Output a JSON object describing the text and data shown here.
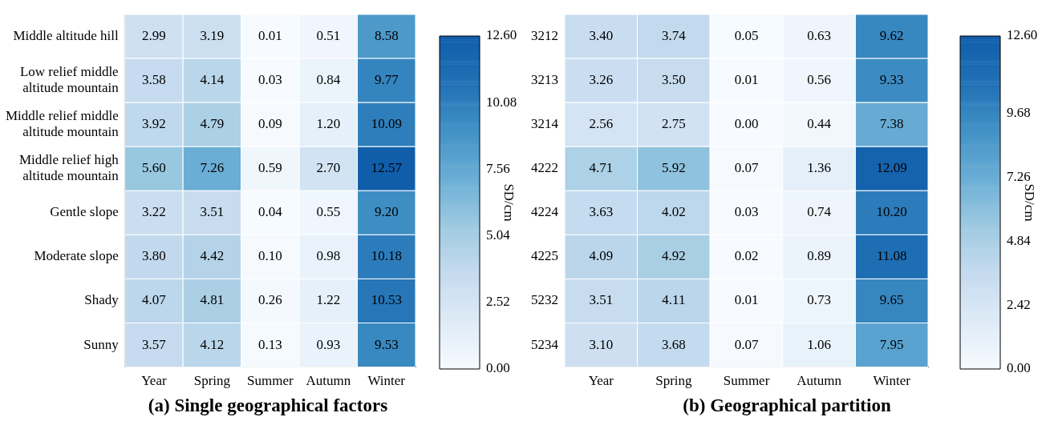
{
  "chart_data": [
    {
      "type": "heatmap",
      "title": "(a) Single geographical factors",
      "clabel": "SD/cm",
      "categories": [
        "Year",
        "Spring",
        "Summer",
        "Autumn",
        "Winter"
      ],
      "y_categories": [
        "Middle altitude hill",
        "Low relief middle altitude mountain",
        "Middle relief middle altitude mountain",
        "Middle relief high altitude mountain",
        "Gentle slope",
        "Moderate slope",
        "Shady",
        "Sunny"
      ],
      "cells": [
        [
          2.99,
          3.19,
          0.01,
          0.51,
          8.58
        ],
        [
          3.58,
          4.14,
          0.03,
          0.84,
          9.77
        ],
        [
          3.92,
          4.79,
          0.09,
          1.2,
          10.09
        ],
        [
          5.6,
          7.26,
          0.59,
          2.7,
          12.57
        ],
        [
          3.22,
          3.51,
          0.04,
          0.55,
          9.2
        ],
        [
          3.8,
          4.42,
          0.1,
          0.98,
          10.18
        ],
        [
          4.07,
          4.81,
          0.26,
          1.22,
          10.53
        ],
        [
          3.57,
          4.12,
          0.13,
          0.93,
          9.53
        ]
      ],
      "cell_labels": [
        [
          "2.99",
          "3.19",
          "0.01",
          "0.51",
          "8.58"
        ],
        [
          "3.58",
          "4.14",
          "0.03",
          "0.84",
          "9.77"
        ],
        [
          "3.92",
          "4.79",
          "0.09",
          "1.20",
          "10.09"
        ],
        [
          "5.60",
          "7.26",
          "0.59",
          "2.70",
          "12.57"
        ],
        [
          "3.22",
          "3.51",
          "0.04",
          "0.55",
          "9.20"
        ],
        [
          "3.80",
          "4.42",
          "0.10",
          "0.98",
          "10.18"
        ],
        [
          "4.07",
          "4.81",
          "0.26",
          "1.22",
          "10.53"
        ],
        [
          "3.57",
          "4.12",
          "0.13",
          "0.93",
          "9.53"
        ]
      ],
      "clim": [
        0,
        12.6
      ],
      "cticks": [
        {
          "value": 0,
          "label": "0.00"
        },
        {
          "value": 2.52,
          "label": "2.52"
        },
        {
          "value": 5.04,
          "label": "5.04"
        },
        {
          "value": 7.56,
          "label": "7.56"
        },
        {
          "value": 10.08,
          "label": "10.08"
        },
        {
          "value": 12.6,
          "label": "12.60"
        }
      ]
    },
    {
      "type": "heatmap",
      "title": "(b) Geographical partition",
      "clabel": "SD/cm",
      "categories": [
        "Year",
        "Spring",
        "Summer",
        "Autumn",
        "Winter"
      ],
      "y_categories": [
        "3212",
        "3213",
        "3214",
        "4222",
        "4224",
        "4225",
        "5232",
        "5234"
      ],
      "cells": [
        [
          3.4,
          3.74,
          0.05,
          0.63,
          9.62
        ],
        [
          3.26,
          3.5,
          0.01,
          0.56,
          9.33
        ],
        [
          2.56,
          2.75,
          0.0,
          0.44,
          7.38
        ],
        [
          4.71,
          5.92,
          0.07,
          1.36,
          12.09
        ],
        [
          3.63,
          4.02,
          0.03,
          0.74,
          10.2
        ],
        [
          4.09,
          4.92,
          0.02,
          0.89,
          11.08
        ],
        [
          3.51,
          4.11,
          0.01,
          0.73,
          9.65
        ],
        [
          3.1,
          3.68,
          0.07,
          1.06,
          7.95
        ]
      ],
      "cell_labels": [
        [
          "3.40",
          "3.74",
          "0.05",
          "0.63",
          "9.62"
        ],
        [
          "3.26",
          "3.50",
          "0.01",
          "0.56",
          "9.33"
        ],
        [
          "2.56",
          "2.75",
          "0.00",
          "0.44",
          "7.38"
        ],
        [
          "4.71",
          "5.92",
          "0.07",
          "1.36",
          "12.09"
        ],
        [
          "3.63",
          "4.02",
          "0.03",
          "0.74",
          "10.20"
        ],
        [
          "4.09",
          "4.92",
          "0.02",
          "0.89",
          "11.08"
        ],
        [
          "3.51",
          "4.11",
          "0.01",
          "0.73",
          "9.65"
        ],
        [
          "3.10",
          "3.68",
          "0.07",
          "1.06",
          "7.95"
        ]
      ],
      "clim": [
        0,
        12.6
      ],
      "cticks": [
        {
          "value": 0,
          "label": "0.00"
        },
        {
          "value": 2.42,
          "label": "2.42"
        },
        {
          "value": 4.84,
          "label": "4.84"
        },
        {
          "value": 7.26,
          "label": "7.26"
        },
        {
          "value": 9.68,
          "label": "9.68"
        },
        {
          "value": 12.6,
          "label": "12.60"
        }
      ]
    }
  ]
}
